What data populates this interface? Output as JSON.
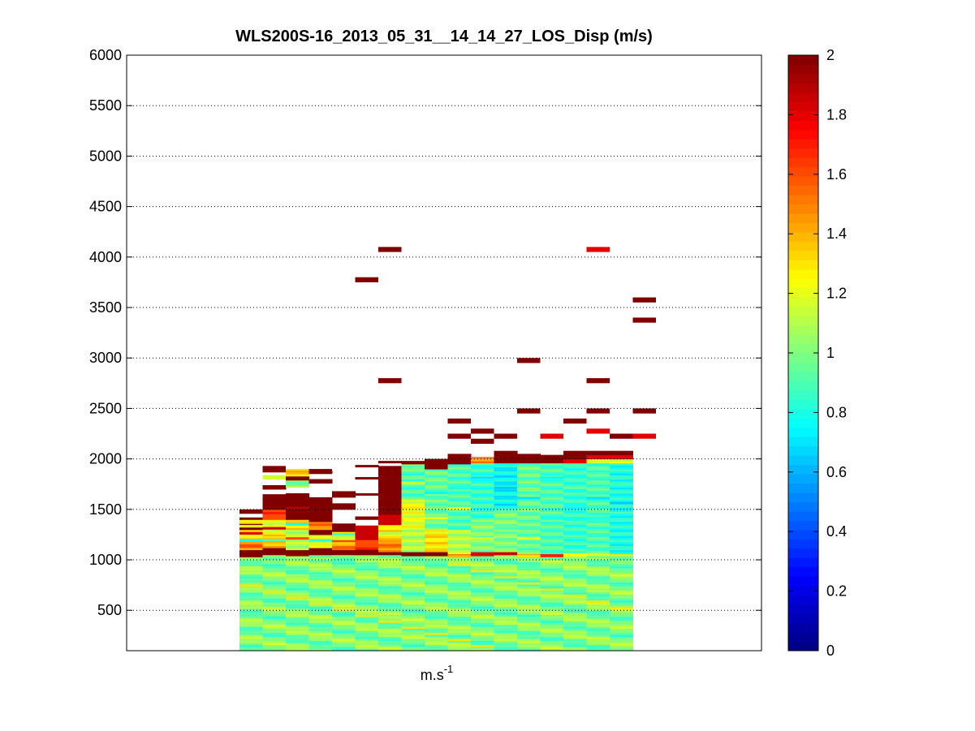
{
  "chart_data": {
    "type": "heatmap",
    "title": "WLS200S-16_2013_05_31__14_14_27_LOS_Disp (m/s)",
    "xlabel_base": "m.s",
    "xlabel_exp": "-1",
    "ylabel": "",
    "ylim": [
      100,
      6000
    ],
    "yticks": [
      500,
      1000,
      1500,
      2000,
      2500,
      3000,
      3500,
      4000,
      4500,
      5000,
      5500,
      6000
    ],
    "grid": "horizontal-dotted",
    "colormap": "jet",
    "colorbar": {
      "range": [
        0,
        2
      ],
      "ticks": [
        0,
        0.2,
        0.4,
        0.6,
        0.8,
        1,
        1.2,
        1.4,
        1.6,
        1.8,
        2
      ]
    },
    "columns": [
      {
        "top": 1500,
        "layers": [
          [
            1000,
            1.0
          ],
          [
            1030,
            2.0
          ],
          [
            1100,
            1.5
          ],
          [
            1200,
            1.25
          ],
          [
            1300,
            2.0
          ],
          [
            1360,
            1.3
          ],
          [
            1400,
            2.0
          ],
          [
            1420,
            null
          ],
          [
            1460,
            2.0
          ],
          [
            1500,
            null
          ]
        ],
        "cells": [
          [
            1180,
            0.75
          ],
          [
            1120,
            1.6
          ],
          [
            1250,
            1.8
          ],
          [
            1320,
            1.2
          ]
        ]
      },
      {
        "top": 1880,
        "layers": [
          [
            1000,
            1.0
          ],
          [
            1050,
            2.0
          ],
          [
            1120,
            1.4
          ],
          [
            1250,
            1.2
          ],
          [
            1400,
            1.6
          ],
          [
            1500,
            2.0
          ],
          [
            1600,
            2.0
          ],
          [
            1650,
            null
          ],
          [
            1700,
            2.0
          ],
          [
            1740,
            null
          ],
          [
            1800,
            1.1
          ],
          [
            1840,
            null
          ],
          [
            1870,
            2.0
          ],
          [
            1880,
            null
          ]
        ],
        "cells": [
          [
            1300,
            1.85
          ],
          [
            1450,
            1.7
          ],
          [
            1180,
            0.9
          ]
        ]
      },
      {
        "top": 1900,
        "layers": [
          [
            1000,
            1.0
          ],
          [
            1040,
            2.0
          ],
          [
            1100,
            1.1
          ],
          [
            1300,
            1.3
          ],
          [
            1400,
            2.0
          ],
          [
            1600,
            2.0
          ],
          [
            1660,
            null
          ],
          [
            1720,
            1.0
          ],
          [
            1790,
            2.0
          ],
          [
            1830,
            1.3
          ],
          [
            1870,
            1.4
          ],
          [
            1900,
            null
          ]
        ],
        "cells": [
          [
            1200,
            1.6
          ],
          [
            1340,
            0.8
          ],
          [
            1500,
            1.9
          ]
        ]
      },
      {
        "top": 1880,
        "layers": [
          [
            1000,
            1.0
          ],
          [
            1050,
            2.0
          ],
          [
            1120,
            1.2
          ],
          [
            1250,
            2.0
          ],
          [
            1300,
            1.5
          ],
          [
            1380,
            2.0
          ],
          [
            1620,
            null
          ],
          [
            1700,
            null
          ],
          [
            1760,
            2.0
          ],
          [
            1800,
            null
          ],
          [
            1860,
            2.0
          ],
          [
            1880,
            null
          ]
        ],
        "cells": [
          [
            1180,
            0.85
          ],
          [
            1400,
            2.0
          ]
        ]
      },
      {
        "top": 1680,
        "layers": [
          [
            1000,
            1.0
          ],
          [
            1050,
            2.0
          ],
          [
            1100,
            1.5
          ],
          [
            1200,
            1.2
          ],
          [
            1280,
            2.0
          ],
          [
            1360,
            null
          ],
          [
            1500,
            2.0
          ],
          [
            1560,
            null
          ],
          [
            1620,
            2.0
          ],
          [
            1680,
            null
          ]
        ],
        "cells": [
          [
            1150,
            1.35
          ],
          [
            1240,
            0.9
          ]
        ]
      },
      {
        "top": 1940,
        "layers": [
          [
            1000,
            1.0
          ],
          [
            1050,
            2.0
          ],
          [
            1120,
            1.6
          ],
          [
            1200,
            1.85
          ],
          [
            1340,
            null
          ],
          [
            1400,
            2.0
          ],
          [
            1430,
            null
          ],
          [
            1640,
            2.0
          ],
          [
            1660,
            null
          ],
          [
            1800,
            2.0
          ],
          [
            1820,
            null
          ],
          [
            1920,
            2.0
          ],
          [
            1940,
            null
          ]
        ],
        "cells": [
          [
            1100,
            1.7
          ]
        ]
      },
      {
        "top": 1980,
        "layers": [
          [
            1000,
            1.0
          ],
          [
            1050,
            2.0
          ],
          [
            1080,
            1.5
          ],
          [
            1200,
            1.3
          ],
          [
            1350,
            1.85
          ],
          [
            1450,
            2.0
          ],
          [
            1900,
            2.0
          ],
          [
            1930,
            null
          ],
          [
            1960,
            2.0
          ],
          [
            1980,
            null
          ]
        ],
        "cells": [
          [
            1250,
            1.1
          ],
          [
            1600,
            2.0
          ]
        ]
      },
      {
        "top": 1980,
        "layers": [
          [
            1000,
            1.0
          ],
          [
            1040,
            2.0
          ],
          [
            1080,
            1.1
          ],
          [
            1300,
            1.2
          ],
          [
            1600,
            0.9
          ],
          [
            1900,
            1.0
          ],
          [
            1950,
            2.0
          ],
          [
            1980,
            null
          ]
        ],
        "cells": [
          [
            1500,
            1.3
          ],
          [
            1750,
            1.15
          ]
        ]
      },
      {
        "top": 2000,
        "layers": [
          [
            1000,
            1.0
          ],
          [
            1040,
            2.0
          ],
          [
            1080,
            1.3
          ],
          [
            1300,
            0.95
          ],
          [
            1900,
            2.0
          ],
          [
            2000,
            null
          ]
        ],
        "cells": [
          [
            1400,
            1.2
          ],
          [
            1650,
            0.75
          ]
        ]
      },
      {
        "top": 2050,
        "layers": [
          [
            1000,
            1.0
          ],
          [
            1030,
            1.5
          ],
          [
            1060,
            1.1
          ],
          [
            1300,
            0.9
          ],
          [
            1950,
            2.0
          ],
          [
            2050,
            null
          ]
        ],
        "cells": [
          [
            1500,
            1.25
          ],
          [
            1700,
            0.8
          ]
        ]
      },
      {
        "top": 2020,
        "layers": [
          [
            1000,
            1.0
          ],
          [
            1040,
            1.8
          ],
          [
            1080,
            1.0
          ],
          [
            1400,
            0.85
          ],
          [
            1960,
            1.5
          ],
          [
            2020,
            null
          ]
        ],
        "cells": [
          [
            1200,
            1.15
          ],
          [
            1800,
            0.7
          ]
        ]
      },
      {
        "top": 2080,
        "layers": [
          [
            1000,
            1.0
          ],
          [
            1050,
            1.85
          ],
          [
            1080,
            1.0
          ],
          [
            1500,
            0.75
          ],
          [
            1960,
            2.0
          ],
          [
            2080,
            null
          ]
        ],
        "cells": [
          [
            1300,
            0.9
          ],
          [
            1700,
            0.65
          ]
        ]
      },
      {
        "top": 2050,
        "layers": [
          [
            1000,
            1.0
          ],
          [
            1030,
            1.4
          ],
          [
            1060,
            0.95
          ],
          [
            1960,
            2.0
          ],
          [
            2050,
            null
          ]
        ],
        "cells": [
          [
            1200,
            1.2
          ],
          [
            1600,
            0.7
          ]
        ]
      },
      {
        "top": 2040,
        "layers": [
          [
            1000,
            1.0
          ],
          [
            1030,
            1.7
          ],
          [
            1060,
            0.9
          ],
          [
            1960,
            2.0
          ],
          [
            2040,
            null
          ]
        ],
        "cells": [
          [
            1400,
            0.8
          ],
          [
            1800,
            0.75
          ]
        ]
      },
      {
        "top": 2080,
        "layers": [
          [
            1000,
            1.0
          ],
          [
            1040,
            1.3
          ],
          [
            1070,
            0.85
          ],
          [
            1960,
            1.8
          ],
          [
            2000,
            2.0
          ],
          [
            2080,
            null
          ]
        ],
        "cells": [
          [
            1500,
            0.75
          ],
          [
            1700,
            0.95
          ]
        ]
      },
      {
        "top": 2080,
        "layers": [
          [
            1000,
            1.0
          ],
          [
            1040,
            1.2
          ],
          [
            1070,
            0.9
          ],
          [
            1960,
            1.1
          ],
          [
            2000,
            1.8
          ],
          [
            2040,
            2.0
          ],
          [
            2080,
            null
          ]
        ],
        "cells": [
          [
            1400,
            0.8
          ],
          [
            1600,
            0.7
          ]
        ]
      },
      {
        "top": 2080,
        "layers": [
          [
            1000,
            1.0
          ],
          [
            1040,
            1.2
          ],
          [
            1060,
            0.8
          ],
          [
            1960,
            1.2
          ],
          [
            2000,
            1.8
          ],
          [
            2040,
            2.0
          ],
          [
            2080,
            null
          ]
        ],
        "cells": [
          [
            1550,
            0.65
          ],
          [
            1750,
            0.85
          ]
        ]
      }
    ],
    "outliers": [
      {
        "col": 1,
        "z": 2.0,
        "y": 1880
      },
      {
        "col": 3,
        "z": 2.0,
        "y": 1850
      },
      {
        "col": 5,
        "z": 2.0,
        "y": 3750
      },
      {
        "col": 6,
        "z": 2.0,
        "y": 2750
      },
      {
        "col": 6,
        "z": 2.0,
        "y": 4050
      },
      {
        "col": 9,
        "z": 2.0,
        "y": 2350
      },
      {
        "col": 9,
        "z": 2.0,
        "y": 2200
      },
      {
        "col": 10,
        "z": 2.0,
        "y": 2250
      },
      {
        "col": 10,
        "z": 2.0,
        "y": 2150
      },
      {
        "col": 11,
        "z": 2.0,
        "y": 2200
      },
      {
        "col": 12,
        "z": 2.0,
        "y": 2950
      },
      {
        "col": 12,
        "z": 2.0,
        "y": 2450
      },
      {
        "col": 13,
        "z": 1.8,
        "y": 2200
      },
      {
        "col": 14,
        "z": 2.0,
        "y": 2350
      },
      {
        "col": 15,
        "z": 2.0,
        "y": 2750
      },
      {
        "col": 15,
        "z": 2.0,
        "y": 2450
      },
      {
        "col": 15,
        "z": 1.8,
        "y": 2250
      },
      {
        "col": 15,
        "z": 1.8,
        "y": 4050
      },
      {
        "col": 16,
        "z": 2.0,
        "y": 2200
      },
      {
        "col": 17,
        "z": 2.0,
        "y": 3550
      },
      {
        "col": 17,
        "z": 2.0,
        "y": 3350
      },
      {
        "col": 17,
        "z": 2.0,
        "y": 2450
      },
      {
        "col": 17,
        "z": 1.8,
        "y": 2200
      }
    ]
  }
}
